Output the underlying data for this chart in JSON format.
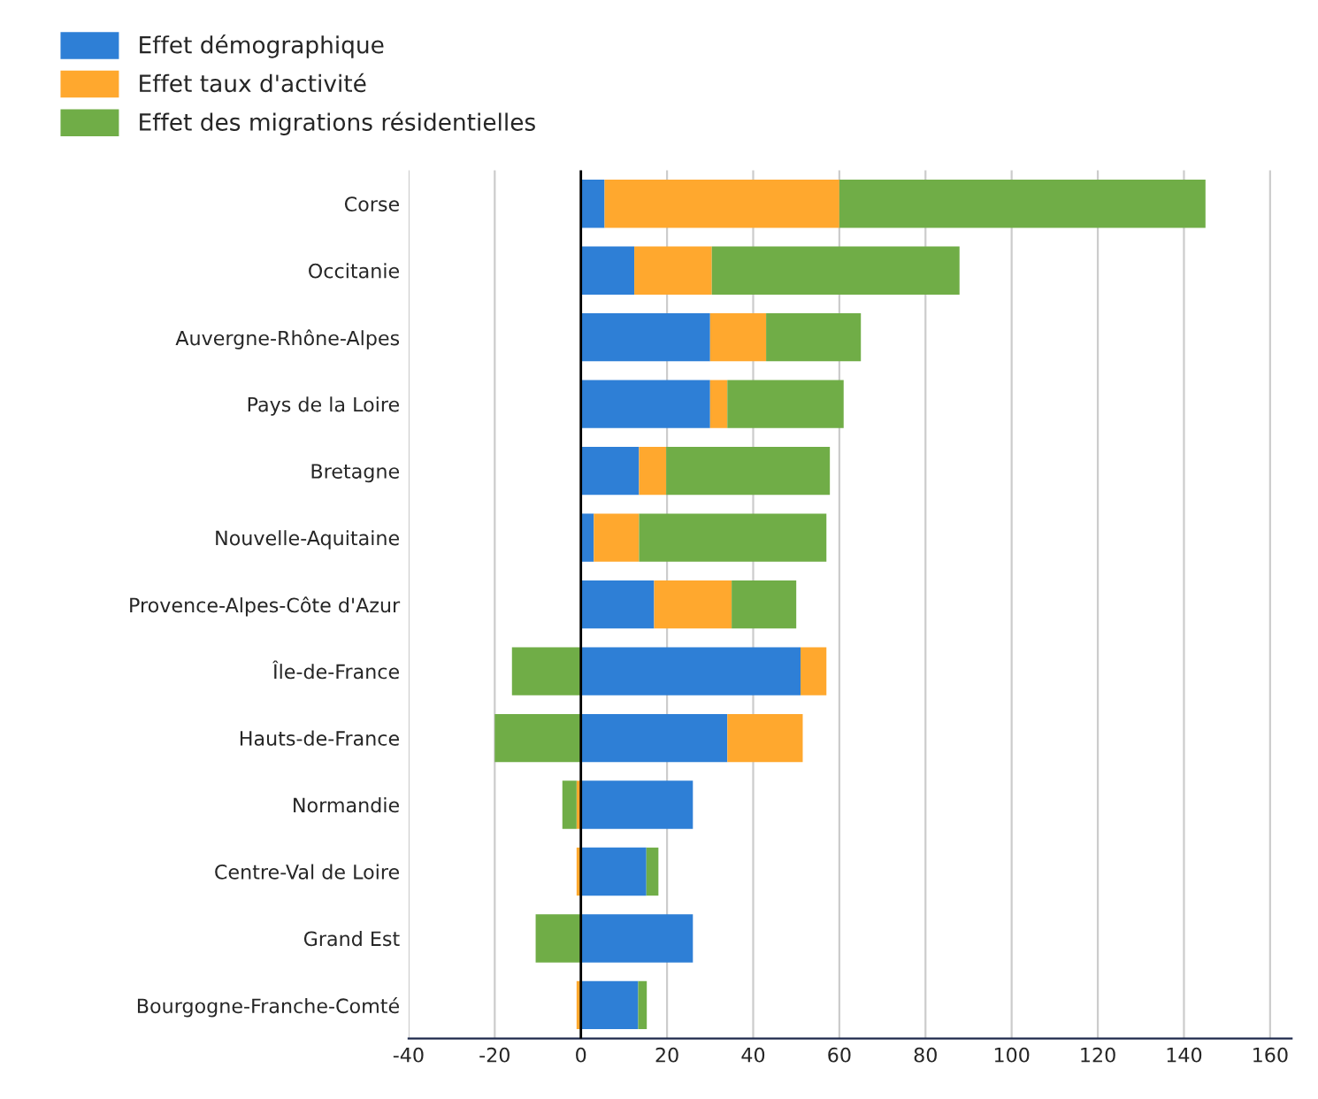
{
  "chart_data": {
    "type": "bar",
    "orientation": "horizontal",
    "stacked": true,
    "categories": [
      "Corse",
      "Occitanie",
      "Auvergne-Rhône-Alpes",
      "Pays de la Loire",
      "Bretagne",
      "Nouvelle-Aquitaine",
      "Provence-Alpes-Côte d'Azur",
      "Île-de-France",
      "Hauts-de-France",
      "Normandie",
      "Centre-Val de Loire",
      "Grand Est",
      "Bourgogne-Franche-Comté"
    ],
    "series": [
      {
        "name": "Effet démographique",
        "color": "#2e7fd6",
        "values": [
          5.5,
          12.4,
          30,
          30,
          13.5,
          3,
          17,
          51,
          34,
          26,
          15.2,
          26,
          13.3
        ]
      },
      {
        "name": "Effet taux d'activité",
        "color": "#ffa82e",
        "values": [
          54.5,
          18,
          13,
          4,
          6.3,
          10.5,
          18,
          6,
          17.5,
          -1,
          -1,
          null,
          -1
        ]
      },
      {
        "name": "Effet des migrations résidentielles",
        "color": "#70ad47",
        "values": [
          85,
          57.5,
          22,
          27,
          38,
          43.5,
          15,
          -16,
          -20,
          -3.3,
          2.8,
          -10.5,
          2
        ]
      }
    ],
    "xlim": [
      -40,
      165
    ],
    "xticks": [
      -40,
      -20,
      0,
      20,
      40,
      60,
      80,
      100,
      120,
      140,
      160
    ],
    "grid": "x",
    "legend": "top left"
  }
}
